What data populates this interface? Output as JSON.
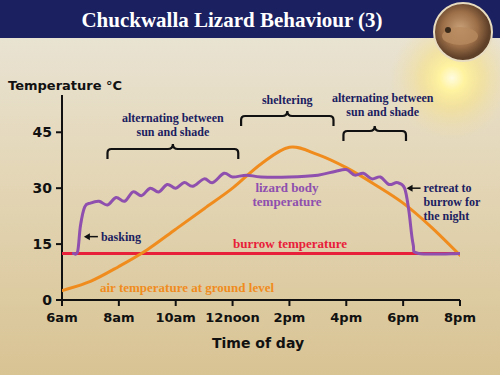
{
  "chart_data": {
    "type": "line",
    "title": "Chuckwalla Lizard Behaviour (3)",
    "xlabel": "Time of day",
    "ylabel": "Temperature °C",
    "xlim": [
      6,
      20
    ],
    "xticks": [
      {
        "value": 6,
        "label": "6am"
      },
      {
        "value": 8,
        "label": "8am"
      },
      {
        "value": 10,
        "label": "10am"
      },
      {
        "value": 12,
        "label": "12noon"
      },
      {
        "value": 14,
        "label": "2pm"
      },
      {
        "value": 16,
        "label": "4pm"
      },
      {
        "value": 18,
        "label": "6pm"
      },
      {
        "value": 20,
        "label": "8pm"
      }
    ],
    "ylim": [
      0,
      55
    ],
    "yticks": [
      0,
      15,
      30,
      45
    ],
    "grid": false,
    "series": [
      {
        "name": "burrow temperature",
        "color": "#e8203a",
        "x": [
          6,
          20
        ],
        "values": [
          12.5,
          12.5
        ]
      },
      {
        "name": "air temperature at ground level",
        "color": "#f08c1e",
        "x": [
          6,
          7,
          8,
          9,
          10,
          11,
          12,
          13,
          14,
          15,
          16,
          17,
          18,
          19,
          20
        ],
        "values": [
          2.5,
          5,
          9,
          13.5,
          19,
          24.5,
          30,
          36.5,
          41,
          39,
          35.5,
          31,
          26,
          19.5,
          12
        ]
      },
      {
        "name": "lizard body temperature",
        "color": "#8e4fae",
        "x": [
          6.4,
          6.55,
          6.65,
          6.8,
          7.0,
          7.3,
          7.6,
          7.9,
          8.2,
          8.5,
          8.8,
          9.1,
          9.4,
          9.7,
          10.0,
          10.3,
          10.6,
          11.0,
          11.3,
          11.7,
          12.0,
          12.5,
          13.0,
          14.0,
          15.0,
          15.6,
          16.0,
          16.3,
          16.6,
          16.9,
          17.2,
          17.5,
          17.8,
          18.05,
          18.2,
          18.35,
          18.55,
          20
        ],
        "values": [
          12.5,
          13,
          20,
          25,
          26,
          26.5,
          25.5,
          27.5,
          26.5,
          29,
          28,
          30,
          29,
          31,
          30,
          31.5,
          30.5,
          32.5,
          31.5,
          34,
          33,
          33.5,
          33,
          33,
          33.5,
          34.5,
          35,
          33.5,
          34,
          32.5,
          33,
          31,
          31.5,
          30,
          24,
          15,
          12.5,
          12.5
        ]
      }
    ],
    "annotations": [
      {
        "text": "basking",
        "x": 6.7,
        "y": 17
      },
      {
        "text": "alternating between sun and shade",
        "x": [
          7.6,
          12.2
        ]
      },
      {
        "text": "sheltering",
        "x": [
          12.3,
          15.55
        ]
      },
      {
        "text": "alternating between sun and shade",
        "x": [
          15.9,
          18.1
        ]
      },
      {
        "text": "retreat to burrow for the night",
        "x": 18.05,
        "y": 30
      }
    ]
  }
}
